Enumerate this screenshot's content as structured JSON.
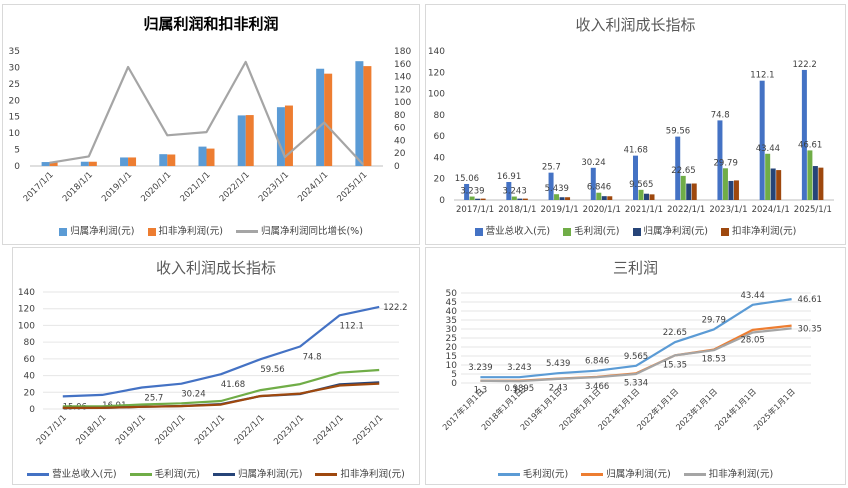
{
  "colors": {
    "blue": "#4472c4",
    "orange": "#ed7d31",
    "gray": "#a5a5a5",
    "green": "#70ad47",
    "navy": "#264478",
    "brown": "#9e480e",
    "lightblue": "#5b9bd5"
  },
  "chart_data": [
    {
      "type": "bar",
      "title": "归属利润和扣非利润",
      "categories": [
        "2017/1/1",
        "2018/1/1",
        "2019/1/1",
        "2020/1/1",
        "2021/1/1",
        "2022/1/1",
        "2023/1/1",
        "2024/1/1",
        "2025/1/1"
      ],
      "series": [
        {
          "name": "归属净利润(元)",
          "kind": "bar",
          "axis": "left",
          "color": "#5b9bd5",
          "values": [
            1.2,
            1.3,
            2.6,
            3.6,
            5.9,
            15.4,
            17.9,
            29.6,
            31.9
          ]
        },
        {
          "name": "扣非净利润(元)",
          "kind": "bar",
          "axis": "left",
          "color": "#ed7d31",
          "values": [
            1.3,
            1.3,
            2.6,
            3.5,
            5.3,
            15.5,
            18.4,
            28.1,
            30.4
          ]
        },
        {
          "name": "归属净利润同比增长(%)",
          "kind": "line",
          "axis": "right",
          "color": "#a5a5a5",
          "values": [
            5,
            15,
            155,
            48,
            53,
            163,
            14,
            68,
            2
          ]
        }
      ],
      "yticks_left": [
        "0",
        "5",
        "10",
        "15",
        "20",
        "25",
        "30",
        "35"
      ],
      "yticks_right": [
        "0",
        "20",
        "40",
        "60",
        "80",
        "100",
        "120",
        "140",
        "160",
        "180"
      ],
      "ylim_left": [
        0,
        35
      ],
      "ylim_right": [
        0,
        180
      ],
      "legend_position": "bottom"
    },
    {
      "type": "bar",
      "title": "收入利润成长指标",
      "categories": [
        "2017/1/1",
        "2018/1/1",
        "2019/1/1",
        "2020/1/1",
        "2021/1/1",
        "2022/1/1",
        "2023/1/1",
        "2024/1/1",
        "2025/1/1"
      ],
      "series": [
        {
          "name": "营业总收入(元)",
          "color": "#4472c4",
          "values": [
            15.06,
            16.91,
            25.7,
            30.24,
            41.68,
            59.56,
            74.8,
            112.1,
            122.2
          ],
          "labels": [
            "15.06",
            "16.91",
            "25.7",
            "30.24",
            "41.68",
            "59.56",
            "74.8",
            "112.1",
            "122.2"
          ]
        },
        {
          "name": "毛利润(元)",
          "color": "#70ad47",
          "values": [
            3.239,
            3.243,
            5.439,
            6.846,
            9.565,
            22.65,
            29.79,
            43.44,
            46.61
          ],
          "labels": [
            "3.239",
            "3.243",
            "5.439",
            "6.846",
            "9.565",
            "22.65",
            "29.79",
            "43.44",
            "46.61"
          ]
        },
        {
          "name": "归属净利润(元)",
          "color": "#264478",
          "values": [
            1.2,
            1.3,
            2.6,
            3.6,
            5.9,
            15.4,
            17.9,
            29.6,
            31.9
          ]
        },
        {
          "name": "扣非净利润(元)",
          "color": "#9e480e",
          "values": [
            1.3,
            1.3,
            2.6,
            3.5,
            5.3,
            15.5,
            18.4,
            28.1,
            30.4
          ]
        }
      ],
      "yticks": [
        "0",
        "20",
        "40",
        "60",
        "80",
        "100",
        "120",
        "140"
      ],
      "ylim": [
        0,
        140
      ],
      "legend_position": "bottom"
    },
    {
      "type": "line",
      "title": "收入利润成长指标",
      "categories": [
        "2017/1/1",
        "2018/1/1",
        "2019/1/1",
        "2020/1/1",
        "2021/1/1",
        "2022/1/1",
        "2023/1/1",
        "2024/1/1",
        "2025/1/1"
      ],
      "series": [
        {
          "name": "营业总收入(元)",
          "color": "#4472c4",
          "values": [
            15.06,
            16.91,
            25.7,
            30.24,
            41.68,
            59.56,
            74.8,
            112.1,
            122.2
          ],
          "labels": [
            "15.06",
            "16.91",
            "25.7",
            "30.24",
            "41.68",
            "59.56",
            "74.8",
            "112.1",
            "122.2"
          ]
        },
        {
          "name": "毛利润(元)",
          "color": "#70ad47",
          "values": [
            3.239,
            3.243,
            5.439,
            6.846,
            9.565,
            22.65,
            29.79,
            43.44,
            46.61
          ]
        },
        {
          "name": "归属净利润(元)",
          "color": "#264478",
          "values": [
            1.2,
            1.3,
            2.6,
            3.6,
            5.9,
            15.4,
            17.9,
            29.6,
            31.9
          ]
        },
        {
          "name": "扣非净利润(元)",
          "color": "#9e480e",
          "values": [
            1.3,
            1.3,
            2.6,
            3.5,
            5.3,
            15.5,
            18.4,
            28.1,
            30.4
          ]
        }
      ],
      "yticks": [
        "0",
        "20",
        "40",
        "60",
        "80",
        "100",
        "120",
        "140"
      ],
      "ylim": [
        0,
        140
      ],
      "legend_position": "bottom"
    },
    {
      "type": "line",
      "title": "三利润",
      "categories": [
        "2017年1月1日",
        "2018年1月1日",
        "2019年1月1日",
        "2020年1月1日",
        "2021年1月1日",
        "2022年1月1日",
        "2023年1月1日",
        "2024年1月1日",
        "2025年1月1日"
      ],
      "series": [
        {
          "name": "毛利润(元)",
          "color": "#5b9bd5",
          "values": [
            3.239,
            3.243,
            5.439,
            6.846,
            9.565,
            22.65,
            29.79,
            43.44,
            46.61
          ],
          "labels": [
            "3.239",
            "3.243",
            "5.439",
            "6.846",
            "9.565",
            "22.65",
            "29.79",
            "43.44",
            "46.61"
          ]
        },
        {
          "name": "归属净利润(元)",
          "color": "#ed7d31",
          "values": [
            1.3,
            1.3,
            2.43,
            3.466,
            5.334,
            15.35,
            18.53,
            29.5,
            31.9
          ],
          "labels": [
            "1.3",
            "1.3",
            "2.43",
            "3.466",
            "5.334",
            "15.35",
            "18.53",
            "",
            ""
          ]
        },
        {
          "name": "扣非净利润(元)",
          "color": "#a5a5a5",
          "values": [
            1.2,
            0.9895,
            2.3,
            3.2,
            5.0,
            15.35,
            18.2,
            28.05,
            30.35
          ],
          "labels": [
            "",
            "0.9895",
            "",
            "",
            "",
            "",
            "",
            "28.05",
            "30.35"
          ]
        }
      ],
      "yticks": [
        "0",
        "5",
        "10",
        "15",
        "20",
        "25",
        "30",
        "35",
        "40",
        "45",
        "50"
      ],
      "ylim": [
        0,
        50
      ],
      "legend_position": "bottom"
    }
  ]
}
